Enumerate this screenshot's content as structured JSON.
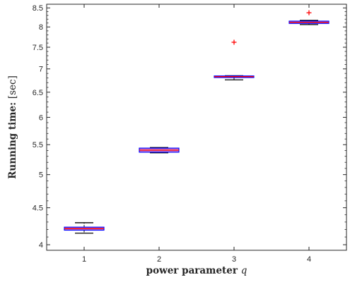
{
  "chart_data": {
    "type": "box",
    "xlabel": "power parameter q",
    "xlabel_parts": {
      "text": "power parameter ",
      "var": "q"
    },
    "ylabel": "Running time: [sec]",
    "ylabel_parts": {
      "text": "Running time: ",
      "unit": "[sec]"
    },
    "y_scale": "log",
    "ylim": [
      3.93,
      8.6
    ],
    "xlim": [
      0.5,
      4.5
    ],
    "x_ticks": [
      "1",
      "2",
      "3",
      "4"
    ],
    "y_ticks": [
      "4",
      "4.5",
      "5",
      "5.5",
      "6",
      "6.5",
      "7",
      "7.5",
      "8",
      "8.5"
    ],
    "grid": false,
    "colors": {
      "box_edge": "#0000ff",
      "box_fill": "#c77fd0",
      "median": "#ff0000",
      "whisker": "#000000",
      "outlier": "#ff0000",
      "axes": "#262626"
    },
    "boxes": [
      {
        "x": 1,
        "whisker_low": 4.15,
        "q1": 4.19,
        "median": 4.21,
        "q3": 4.23,
        "whisker_high": 4.29,
        "outliers": []
      },
      {
        "x": 2,
        "whisker_low": 5.36,
        "q1": 5.37,
        "median": 5.405,
        "q3": 5.44,
        "whisker_high": 5.45,
        "outliers": []
      },
      {
        "x": 3,
        "whisker_low": 6.76,
        "q1": 6.81,
        "median": 6.83,
        "q3": 6.845,
        "whisker_high": 6.85,
        "outliers": [
          7.62
        ]
      },
      {
        "x": 4,
        "whisker_low": 8.06,
        "q1": 8.09,
        "median": 8.12,
        "q3": 8.15,
        "whisker_high": 8.17,
        "outliers": [
          8.37
        ]
      }
    ]
  }
}
